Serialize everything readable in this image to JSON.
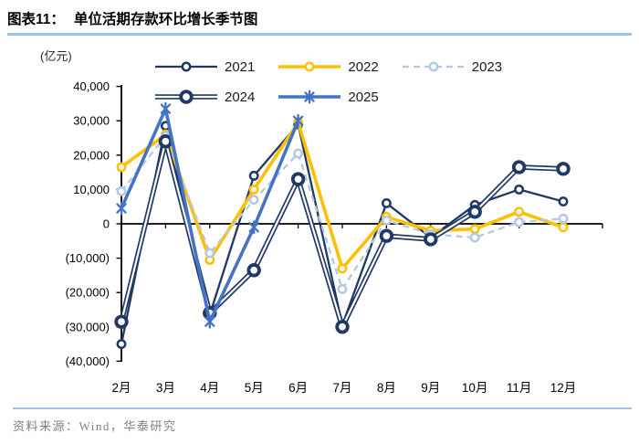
{
  "header": {
    "tag": "图表11：",
    "title": "单位活期存款环比增长季节图"
  },
  "chart_data": {
    "type": "line",
    "title": "单位活期存款环比增长季节图",
    "unit_label": "(亿元)",
    "categories": [
      "2月",
      "3月",
      "4月",
      "5月",
      "6月",
      "7月",
      "8月",
      "9月",
      "10月",
      "11月",
      "12月"
    ],
    "series": [
      {
        "name": "2021",
        "color": "#1F3864",
        "line_style": "solid",
        "marker": "open-circle",
        "values": [
          -35000,
          28500,
          -26500,
          14000,
          29000,
          -29500,
          6000,
          -4000,
          5500,
          10000,
          6500
        ]
      },
      {
        "name": "2022",
        "color": "#FFC000",
        "line_style": "solid",
        "marker": "open-circle",
        "values": [
          16500,
          26000,
          -10500,
          10000,
          29500,
          -13000,
          2000,
          -2000,
          -1500,
          3500,
          -1000
        ]
      },
      {
        "name": "2023",
        "color": "#B4C7E7",
        "line_style": "dashed",
        "marker": "open-circle",
        "values": [
          9500,
          25500,
          -8500,
          7000,
          20500,
          -19000,
          1000,
          -3000,
          -4000,
          500,
          1500
        ]
      },
      {
        "name": "2024",
        "color": "#1F3864",
        "line_style": "hollow",
        "marker": "open-circle-bold",
        "values": [
          -28500,
          24000,
          -26000,
          -13500,
          13000,
          -30000,
          -3500,
          -4500,
          3500,
          16500,
          16000
        ]
      },
      {
        "name": "2025",
        "color": "#4472C4",
        "line_style": "solid",
        "marker": "star",
        "values": [
          4500,
          33500,
          -28500,
          -1000,
          30000,
          null,
          null,
          null,
          null,
          null,
          null
        ]
      }
    ],
    "ylim": [
      -40000,
      40000
    ],
    "ytick_step": 10000,
    "ytick_labels": [
      "(40,000)",
      "(30,000)",
      "(20,000)",
      "(10,000)",
      "0",
      "10,000",
      "20,000",
      "30,000",
      "40,000"
    ],
    "legend_rows": [
      [
        "2021",
        "2022",
        "2023"
      ],
      [
        "2024",
        "2025"
      ]
    ],
    "legend_position": "top",
    "grid": false
  },
  "footer": {
    "source": "资料来源：Wind，华泰研究"
  },
  "colors": {
    "accent_rule": "#9DC3E6",
    "axis": "#000000",
    "navy": "#1F3864",
    "yellow": "#FFC000",
    "light_blue": "#B4C7E7",
    "medium_blue": "#4472C4",
    "footer_text": "#7F7F7F",
    "background": "#FFFFFF"
  }
}
